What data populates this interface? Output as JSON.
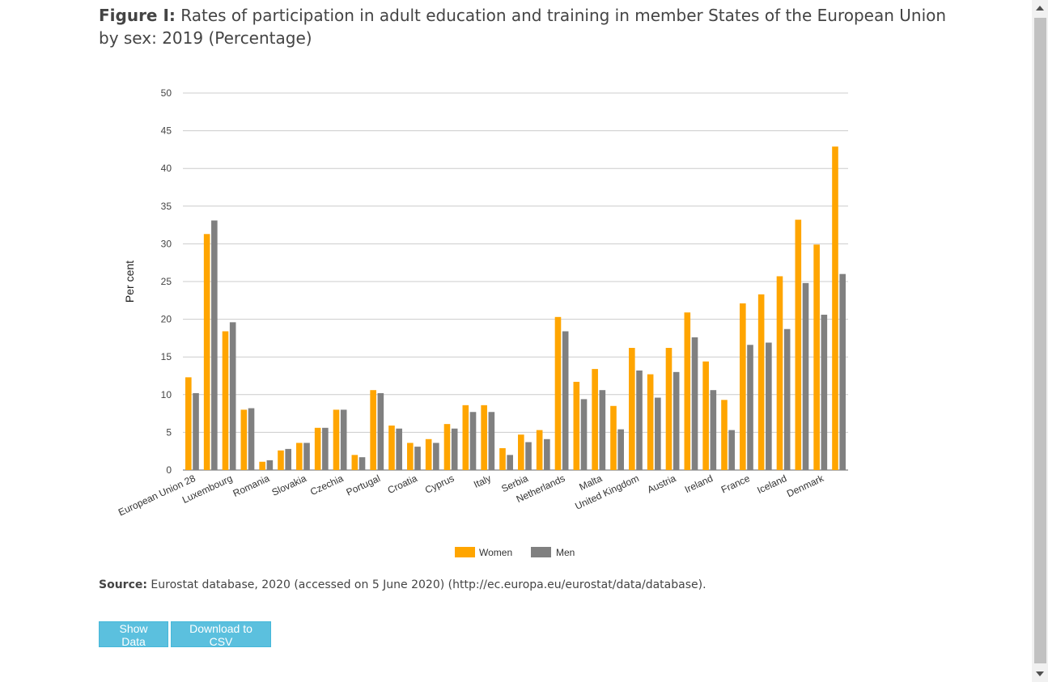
{
  "figure": {
    "label": "Figure I:",
    "title": "Rates of participation in adult education and training in member States of the European Union by sex: 2019 (Percentage)"
  },
  "source": {
    "label": "Source:",
    "text": "Eurostat database, 2020 (accessed on 5 June 2020) (http://ec.europa.eu/eurostat/data/database)."
  },
  "buttons": {
    "show_data": "Show Data",
    "download_csv": "Download to CSV"
  },
  "colors": {
    "women": "#FFA500",
    "men": "#808080",
    "grid": "#cccccc",
    "axis": "#666666"
  },
  "chart_data": {
    "type": "bar",
    "ylabel": "Per cent",
    "ylim": [
      0,
      50
    ],
    "yticks": [
      0,
      5,
      10,
      15,
      20,
      25,
      30,
      35,
      40,
      45,
      50
    ],
    "grid": true,
    "legend_position": "bottom",
    "categories": [
      "European Union 28",
      "Luxembourg",
      "Romania",
      "Slovakia",
      "Czechia",
      "Portugal",
      "Croatia",
      "Cyprus",
      "Italy",
      "Serbia",
      "Netherlands",
      "Malta",
      "United Kingdom",
      "Austria",
      "Ireland",
      "France",
      "Iceland",
      "Denmark"
    ],
    "bars": [
      {
        "label": "European Union 28",
        "women": 12.3,
        "men": 10.2
      },
      {
        "label": "",
        "women": 31.3,
        "men": 33.1
      },
      {
        "label": "Luxembourg",
        "women": 18.4,
        "men": 19.6
      },
      {
        "label": "",
        "women": 8.0,
        "men": 8.2
      },
      {
        "label": "Romania",
        "women": 1.1,
        "men": 1.3
      },
      {
        "label": "",
        "women": 2.6,
        "men": 2.8
      },
      {
        "label": "Slovakia",
        "women": 3.6,
        "men": 3.6
      },
      {
        "label": "",
        "women": 5.6,
        "men": 5.6
      },
      {
        "label": "Czechia",
        "women": 8.0,
        "men": 8.0
      },
      {
        "label": "",
        "women": 2.0,
        "men": 1.7
      },
      {
        "label": "Portugal",
        "women": 10.6,
        "men": 10.2
      },
      {
        "label": "",
        "women": 5.9,
        "men": 5.5
      },
      {
        "label": "Croatia",
        "women": 3.6,
        "men": 3.1
      },
      {
        "label": "",
        "women": 4.1,
        "men": 3.6
      },
      {
        "label": "Cyprus",
        "women": 6.1,
        "men": 5.5
      },
      {
        "label": "",
        "women": 8.6,
        "men": 7.7
      },
      {
        "label": "Italy",
        "women": 8.6,
        "men": 7.7
      },
      {
        "label": "",
        "women": 2.9,
        "men": 2.0
      },
      {
        "label": "Serbia",
        "women": 4.7,
        "men": 3.7
      },
      {
        "label": "",
        "women": 5.3,
        "men": 4.1
      },
      {
        "label": "Netherlands",
        "women": 20.3,
        "men": 18.4
      },
      {
        "label": "",
        "women": 11.7,
        "men": 9.4
      },
      {
        "label": "Malta",
        "women": 13.4,
        "men": 10.6
      },
      {
        "label": "",
        "women": 8.5,
        "men": 5.4
      },
      {
        "label": "United Kingdom",
        "women": 16.2,
        "men": 13.2
      },
      {
        "label": "",
        "women": 12.7,
        "men": 9.6
      },
      {
        "label": "Austria",
        "women": 16.2,
        "men": 13.0
      },
      {
        "label": "",
        "women": 20.9,
        "men": 17.6
      },
      {
        "label": "Ireland",
        "women": 14.4,
        "men": 10.6
      },
      {
        "label": "",
        "women": 9.3,
        "men": 5.3
      },
      {
        "label": "France",
        "women": 22.1,
        "men": 16.6
      },
      {
        "label": "",
        "women": 23.3,
        "men": 16.9
      },
      {
        "label": "Iceland",
        "women": 25.7,
        "men": 18.7
      },
      {
        "label": "",
        "women": 33.2,
        "men": 24.8
      },
      {
        "label": "Denmark",
        "women": 29.9,
        "men": 20.6
      },
      {
        "label": "",
        "women": 42.9,
        "men": 26.0
      }
    ],
    "series": [
      {
        "name": "Women"
      },
      {
        "name": "Men"
      }
    ]
  }
}
